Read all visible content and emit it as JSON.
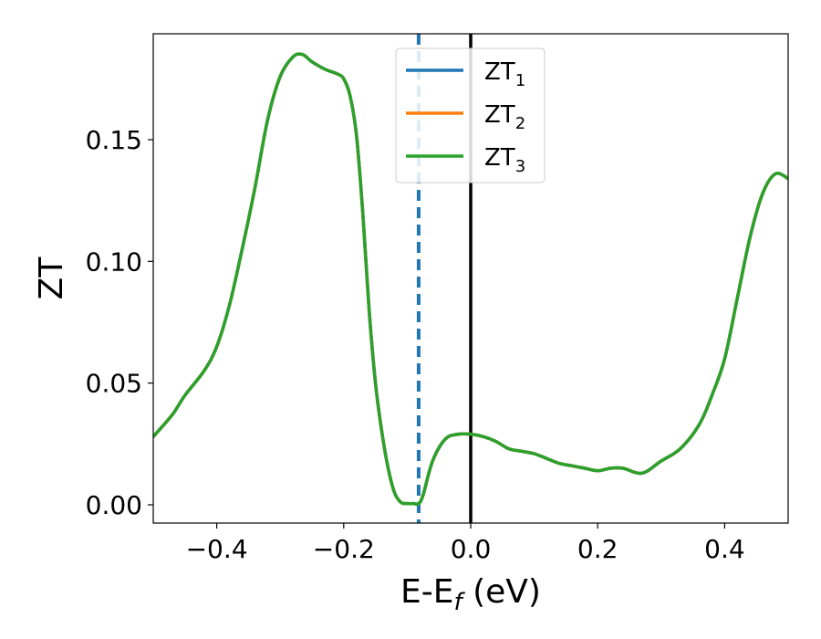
{
  "chart_data": {
    "type": "line",
    "title": "",
    "xlabel": "E-E",
    "xlabel_sub": "f",
    "xlabel_unit": " (eV)",
    "ylabel": "ZT",
    "xlim": [
      -0.5,
      0.5
    ],
    "ylim": [
      -0.0075,
      0.1935
    ],
    "xticks": [
      -0.4,
      -0.2,
      0.0,
      0.2,
      0.4
    ],
    "xtick_labels": [
      "−0.4",
      "−0.2",
      "0.0",
      "0.2",
      "0.4"
    ],
    "yticks": [
      0.0,
      0.05,
      0.1,
      0.15
    ],
    "ytick_labels": [
      "0.00",
      "0.05",
      "0.10",
      "0.15"
    ],
    "grid": false,
    "legend_position": "top-center",
    "vlines": [
      {
        "x": -0.082,
        "style": "dashed",
        "color": "#1f77b4"
      },
      {
        "x": 0.0,
        "style": "solid",
        "color": "#000000"
      }
    ],
    "x": [
      -0.5,
      -0.47,
      -0.45,
      -0.42,
      -0.4,
      -0.38,
      -0.36,
      -0.34,
      -0.32,
      -0.3,
      -0.28,
      -0.265,
      -0.25,
      -0.23,
      -0.21,
      -0.2,
      -0.19,
      -0.18,
      -0.17,
      -0.16,
      -0.15,
      -0.14,
      -0.13,
      -0.12,
      -0.11,
      -0.1,
      -0.09,
      -0.082,
      -0.075,
      -0.06,
      -0.04,
      -0.02,
      0.0,
      0.02,
      0.04,
      0.06,
      0.08,
      0.1,
      0.12,
      0.14,
      0.16,
      0.18,
      0.2,
      0.22,
      0.24,
      0.27,
      0.3,
      0.33,
      0.36,
      0.38,
      0.4,
      0.42,
      0.44,
      0.46,
      0.48,
      0.5
    ],
    "series": [
      {
        "name": "ZT",
        "name_sub": "1",
        "color": "#1f77b4",
        "values": [
          0.028,
          0.037,
          0.045,
          0.055,
          0.065,
          0.082,
          0.105,
          0.13,
          0.158,
          0.176,
          0.184,
          0.185,
          0.182,
          0.179,
          0.177,
          0.175,
          0.168,
          0.152,
          0.12,
          0.08,
          0.05,
          0.03,
          0.015,
          0.005,
          0.001,
          0.0005,
          0.0005,
          0.0005,
          0.004,
          0.018,
          0.027,
          0.029,
          0.029,
          0.028,
          0.026,
          0.023,
          0.022,
          0.021,
          0.019,
          0.017,
          0.016,
          0.015,
          0.014,
          0.015,
          0.015,
          0.013,
          0.018,
          0.023,
          0.033,
          0.045,
          0.06,
          0.085,
          0.11,
          0.128,
          0.136,
          0.134
        ]
      },
      {
        "name": "ZT",
        "name_sub": "2",
        "color": "#ff7f0e",
        "values": [
          0.028,
          0.037,
          0.045,
          0.055,
          0.065,
          0.082,
          0.105,
          0.13,
          0.158,
          0.176,
          0.184,
          0.185,
          0.182,
          0.179,
          0.177,
          0.175,
          0.168,
          0.152,
          0.12,
          0.08,
          0.05,
          0.03,
          0.015,
          0.005,
          0.001,
          0.0005,
          0.0005,
          0.0005,
          0.004,
          0.018,
          0.027,
          0.029,
          0.029,
          0.028,
          0.026,
          0.023,
          0.022,
          0.021,
          0.019,
          0.017,
          0.016,
          0.015,
          0.014,
          0.015,
          0.015,
          0.013,
          0.018,
          0.023,
          0.033,
          0.045,
          0.06,
          0.085,
          0.11,
          0.128,
          0.136,
          0.134
        ]
      },
      {
        "name": "ZT",
        "name_sub": "3",
        "color": "#2ca02c",
        "values": [
          0.028,
          0.037,
          0.045,
          0.055,
          0.065,
          0.082,
          0.105,
          0.13,
          0.158,
          0.176,
          0.184,
          0.185,
          0.182,
          0.179,
          0.177,
          0.175,
          0.168,
          0.152,
          0.12,
          0.08,
          0.05,
          0.03,
          0.015,
          0.005,
          0.001,
          0.0005,
          0.0005,
          0.0005,
          0.004,
          0.018,
          0.027,
          0.029,
          0.029,
          0.028,
          0.026,
          0.023,
          0.022,
          0.021,
          0.019,
          0.017,
          0.016,
          0.015,
          0.014,
          0.015,
          0.015,
          0.013,
          0.018,
          0.023,
          0.033,
          0.045,
          0.06,
          0.085,
          0.11,
          0.128,
          0.136,
          0.134
        ]
      }
    ]
  }
}
